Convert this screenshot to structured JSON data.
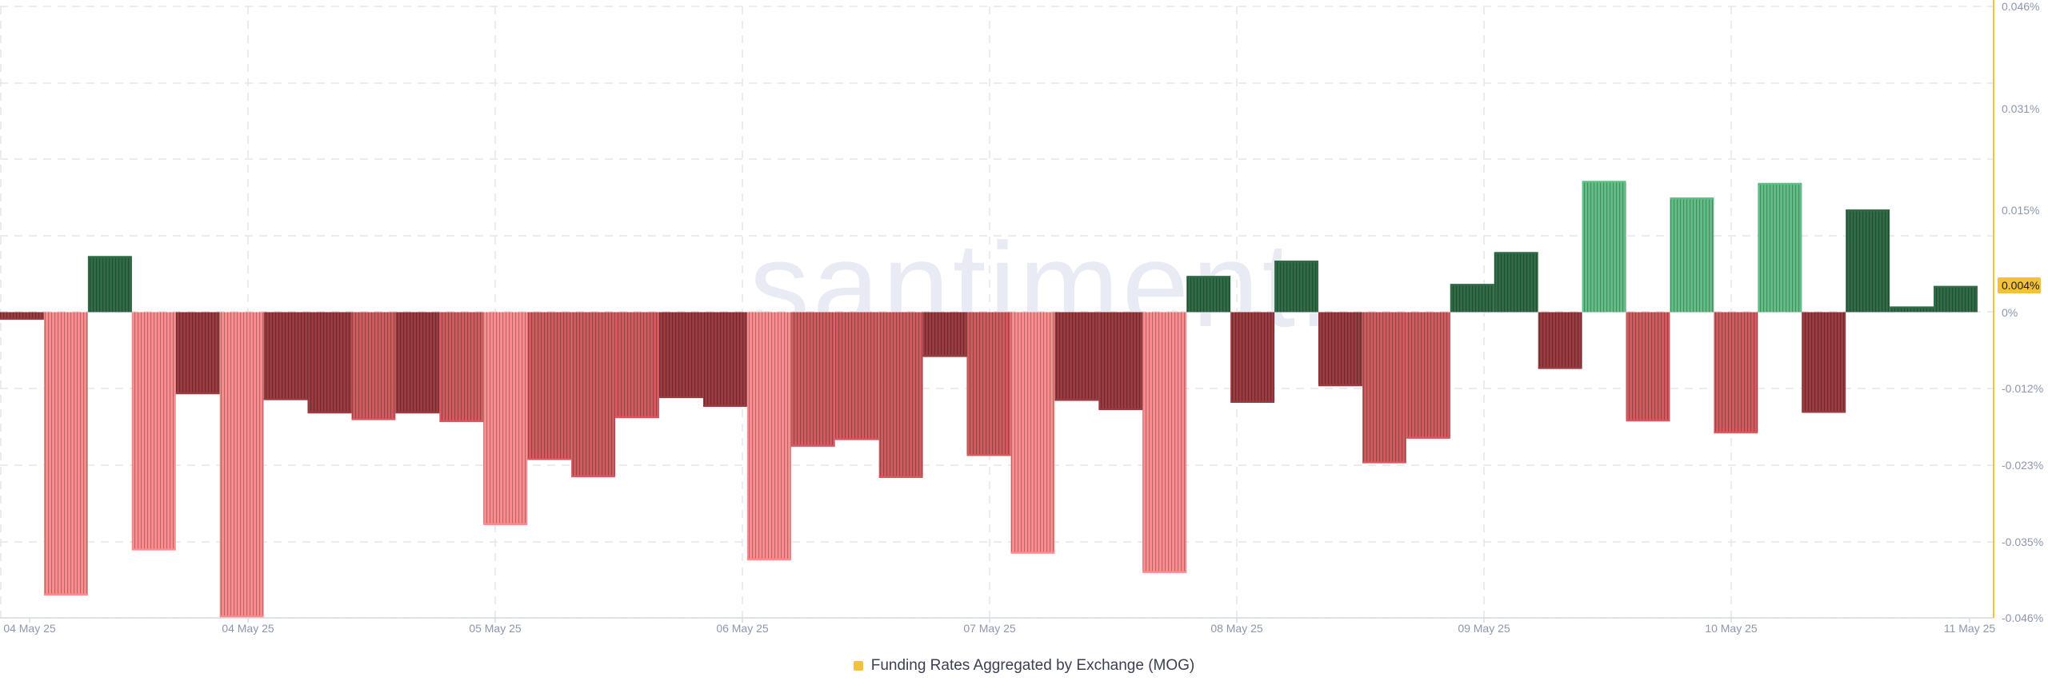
{
  "watermark": ".santiment.",
  "legend": {
    "label": "Funding Rates Aggregated by Exchange (MOG)",
    "color": "#f3c23a"
  },
  "colors": {
    "positive_dark": "#2f6b45",
    "positive_light": "#5fbf85",
    "negative_dark": "#9b3a3f",
    "negative_mid": "#d9585f",
    "negative_light": "#ff8b8d",
    "grid": "#e4e6ec",
    "axis_text": "#8d96ad",
    "current_marker": "#f3c23a"
  },
  "chart_data": {
    "type": "bar",
    "title": "",
    "xlabel": "",
    "ylabel": "",
    "ylim": [
      -0.046,
      0.046
    ],
    "y_unit": "%",
    "y_ticks": [
      "0.046%",
      "0.031%",
      "0.015%",
      "0.004%",
      "0%",
      "-0.012%",
      "-0.023%",
      "-0.035%",
      "-0.046%"
    ],
    "current_value_label": "0.004%",
    "x_tick_labels": [
      "04 May 25",
      "04 May 25",
      "05 May 25",
      "06 May 25",
      "07 May 25",
      "08 May 25",
      "09 May 25",
      "10 May 25",
      "11 May 25"
    ],
    "grid": true,
    "legend_position": "bottom-center",
    "series": [
      {
        "name": "Funding Rates Aggregated by Exchange (MOG)",
        "values": [
          {
            "v": -0.001,
            "shade": "negative_dark"
          },
          {
            "v": -0.0425,
            "shade": "negative_light"
          },
          {
            "v": 0.0083,
            "shade": "positive_dark"
          },
          {
            "v": -0.0357,
            "shade": "negative_light"
          },
          {
            "v": -0.0122,
            "shade": "negative_dark"
          },
          {
            "v": -0.0458,
            "shade": "negative_light"
          },
          {
            "v": -0.0131,
            "shade": "negative_dark"
          },
          {
            "v": -0.0151,
            "shade": "negative_dark"
          },
          {
            "v": -0.0161,
            "shade": "negative_mid"
          },
          {
            "v": -0.0151,
            "shade": "negative_dark"
          },
          {
            "v": -0.0164,
            "shade": "negative_mid"
          },
          {
            "v": -0.0319,
            "shade": "negative_light"
          },
          {
            "v": -0.0221,
            "shade": "negative_mid"
          },
          {
            "v": -0.0247,
            "shade": "negative_mid"
          },
          {
            "v": -0.0158,
            "shade": "negative_mid"
          },
          {
            "v": -0.0128,
            "shade": "negative_dark"
          },
          {
            "v": -0.0141,
            "shade": "negative_dark"
          },
          {
            "v": -0.0372,
            "shade": "negative_light"
          },
          {
            "v": -0.0201,
            "shade": "negative_mid"
          },
          {
            "v": -0.0191,
            "shade": "negative_mid"
          },
          {
            "v": -0.0248,
            "shade": "negative_mid"
          },
          {
            "v": -0.0066,
            "shade": "negative_dark"
          },
          {
            "v": -0.0215,
            "shade": "negative_mid"
          },
          {
            "v": -0.0362,
            "shade": "negative_light"
          },
          {
            "v": -0.0132,
            "shade": "negative_dark"
          },
          {
            "v": -0.0146,
            "shade": "negative_dark"
          },
          {
            "v": -0.0391,
            "shade": "negative_light"
          },
          {
            "v": 0.0053,
            "shade": "positive_dark"
          },
          {
            "v": -0.0135,
            "shade": "negative_dark"
          },
          {
            "v": 0.0076,
            "shade": "positive_dark"
          },
          {
            "v": -0.011,
            "shade": "negative_dark"
          },
          {
            "v": -0.0226,
            "shade": "negative_mid"
          },
          {
            "v": -0.0189,
            "shade": "negative_mid"
          },
          {
            "v": 0.0041,
            "shade": "positive_dark"
          },
          {
            "v": 0.0089,
            "shade": "positive_dark"
          },
          {
            "v": -0.0084,
            "shade": "negative_dark"
          },
          {
            "v": 0.0196,
            "shade": "positive_light"
          },
          {
            "v": -0.0163,
            "shade": "negative_mid"
          },
          {
            "v": 0.0171,
            "shade": "positive_light"
          },
          {
            "v": -0.0181,
            "shade": "negative_mid"
          },
          {
            "v": 0.0193,
            "shade": "positive_light"
          },
          {
            "v": -0.015,
            "shade": "negative_dark"
          },
          {
            "v": 0.0153,
            "shade": "positive_dark"
          },
          {
            "v": 0.0007,
            "shade": "positive_dark"
          },
          {
            "v": 0.0038,
            "shade": "positive_dark"
          }
        ]
      }
    ]
  }
}
